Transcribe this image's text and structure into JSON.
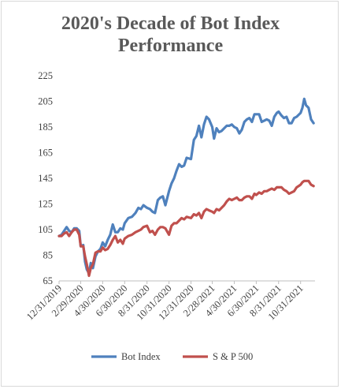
{
  "chart_data": {
    "type": "line",
    "title_lines": [
      "2020's Decade of Bot Index",
      "Performance"
    ],
    "xlabel": "",
    "ylabel": "",
    "ylim": [
      65,
      225
    ],
    "yticks": [
      65,
      85,
      105,
      125,
      145,
      165,
      185,
      205,
      225
    ],
    "xlim": [
      "2019-12-31",
      "2021-12-10"
    ],
    "xticks": [
      "12/31/2019",
      "2/29/2020",
      "4/30/2020",
      "6/30/2020",
      "8/31/2020",
      "10/31/2020",
      "12/31/2020",
      "2/28/2021",
      "4/30/2021",
      "6/30/2021",
      "8/31/2021",
      "10/31/2021"
    ],
    "grid": false,
    "legend": "bottom",
    "series": [
      {
        "name": "Bot Index",
        "color": "#4f81bd",
        "points": [
          [
            "2019-12-31",
            100
          ],
          [
            "2020-01-07",
            101
          ],
          [
            "2020-01-14",
            104
          ],
          [
            "2020-01-21",
            107
          ],
          [
            "2020-01-28",
            104
          ],
          [
            "2020-02-04",
            103
          ],
          [
            "2020-02-11",
            106
          ],
          [
            "2020-02-18",
            106
          ],
          [
            "2020-02-25",
            104
          ],
          [
            "2020-02-29",
            92
          ],
          [
            "2020-03-07",
            93
          ],
          [
            "2020-03-12",
            80
          ],
          [
            "2020-03-17",
            74
          ],
          [
            "2020-03-23",
            71
          ],
          [
            "2020-03-28",
            79
          ],
          [
            "2020-04-03",
            75
          ],
          [
            "2020-04-10",
            84
          ],
          [
            "2020-04-17",
            88
          ],
          [
            "2020-04-24",
            90
          ],
          [
            "2020-04-30",
            95
          ],
          [
            "2020-05-07",
            92
          ],
          [
            "2020-05-14",
            97
          ],
          [
            "2020-05-21",
            101
          ],
          [
            "2020-05-28",
            109
          ],
          [
            "2020-06-04",
            103
          ],
          [
            "2020-06-11",
            103
          ],
          [
            "2020-06-18",
            106
          ],
          [
            "2020-06-25",
            105
          ],
          [
            "2020-06-30",
            110
          ],
          [
            "2020-07-10",
            114
          ],
          [
            "2020-07-20",
            115
          ],
          [
            "2020-07-30",
            118
          ],
          [
            "2020-08-07",
            122
          ],
          [
            "2020-08-14",
            121
          ],
          [
            "2020-08-21",
            124
          ],
          [
            "2020-08-31",
            122
          ],
          [
            "2020-09-08",
            121
          ],
          [
            "2020-09-15",
            119
          ],
          [
            "2020-09-22",
            118
          ],
          [
            "2020-09-30",
            128
          ],
          [
            "2020-10-07",
            130
          ],
          [
            "2020-10-14",
            131
          ],
          [
            "2020-10-21",
            124
          ],
          [
            "2020-10-31",
            135
          ],
          [
            "2020-11-07",
            141
          ],
          [
            "2020-11-14",
            145
          ],
          [
            "2020-11-21",
            151
          ],
          [
            "2020-11-28",
            156
          ],
          [
            "2020-12-05",
            154
          ],
          [
            "2020-12-12",
            155
          ],
          [
            "2020-12-19",
            161
          ],
          [
            "2020-12-31",
            160
          ],
          [
            "2021-01-08",
            175
          ],
          [
            "2021-01-15",
            178
          ],
          [
            "2021-01-22",
            186
          ],
          [
            "2021-01-29",
            177
          ],
          [
            "2021-02-05",
            187
          ],
          [
            "2021-02-12",
            193
          ],
          [
            "2021-02-19",
            191
          ],
          [
            "2021-02-28",
            185
          ],
          [
            "2021-03-05",
            176
          ],
          [
            "2021-03-12",
            184
          ],
          [
            "2021-03-19",
            181
          ],
          [
            "2021-03-26",
            182
          ],
          [
            "2021-04-02",
            184
          ],
          [
            "2021-04-09",
            186
          ],
          [
            "2021-04-16",
            186
          ],
          [
            "2021-04-23",
            187
          ],
          [
            "2021-04-30",
            185
          ],
          [
            "2021-05-07",
            184
          ],
          [
            "2021-05-14",
            180
          ],
          [
            "2021-05-21",
            183
          ],
          [
            "2021-05-28",
            189
          ],
          [
            "2021-06-04",
            191
          ],
          [
            "2021-06-11",
            192
          ],
          [
            "2021-06-18",
            189
          ],
          [
            "2021-06-25",
            195
          ],
          [
            "2021-06-30",
            195
          ],
          [
            "2021-07-08",
            195
          ],
          [
            "2021-07-15",
            189
          ],
          [
            "2021-07-22",
            190
          ],
          [
            "2021-07-29",
            191
          ],
          [
            "2021-08-05",
            190
          ],
          [
            "2021-08-12",
            186
          ],
          [
            "2021-08-19",
            193
          ],
          [
            "2021-08-26",
            196
          ],
          [
            "2021-08-31",
            197
          ],
          [
            "2021-09-08",
            194
          ],
          [
            "2021-09-15",
            192
          ],
          [
            "2021-09-22",
            193
          ],
          [
            "2021-09-29",
            188
          ],
          [
            "2021-10-06",
            188
          ],
          [
            "2021-10-13",
            192
          ],
          [
            "2021-10-20",
            193
          ],
          [
            "2021-10-31",
            196
          ],
          [
            "2021-11-05",
            200
          ],
          [
            "2021-11-10",
            207
          ],
          [
            "2021-11-15",
            202
          ],
          [
            "2021-11-22",
            200
          ],
          [
            "2021-11-29",
            191
          ],
          [
            "2021-12-06",
            188
          ]
        ]
      },
      {
        "name": "S & P 500",
        "color": "#c0504d",
        "points": [
          [
            "2019-12-31",
            100
          ],
          [
            "2020-01-07",
            100
          ],
          [
            "2020-01-14",
            102
          ],
          [
            "2020-01-21",
            103
          ],
          [
            "2020-01-28",
            100
          ],
          [
            "2020-02-04",
            103
          ],
          [
            "2020-02-11",
            105
          ],
          [
            "2020-02-18",
            105
          ],
          [
            "2020-02-25",
            101
          ],
          [
            "2020-02-29",
            92
          ],
          [
            "2020-03-07",
            92
          ],
          [
            "2020-03-12",
            84
          ],
          [
            "2020-03-17",
            78
          ],
          [
            "2020-03-23",
            69
          ],
          [
            "2020-03-28",
            75
          ],
          [
            "2020-04-03",
            78
          ],
          [
            "2020-04-10",
            87
          ],
          [
            "2020-04-17",
            88
          ],
          [
            "2020-04-24",
            88
          ],
          [
            "2020-04-30",
            91
          ],
          [
            "2020-05-07",
            89
          ],
          [
            "2020-05-14",
            90
          ],
          [
            "2020-05-21",
            93
          ],
          [
            "2020-05-28",
            97
          ],
          [
            "2020-06-04",
            100
          ],
          [
            "2020-06-11",
            95
          ],
          [
            "2020-06-18",
            97
          ],
          [
            "2020-06-25",
            94
          ],
          [
            "2020-06-30",
            98
          ],
          [
            "2020-07-10",
            100
          ],
          [
            "2020-07-20",
            101
          ],
          [
            "2020-07-30",
            103
          ],
          [
            "2020-08-07",
            104
          ],
          [
            "2020-08-14",
            105
          ],
          [
            "2020-08-21",
            107
          ],
          [
            "2020-08-31",
            108
          ],
          [
            "2020-09-08",
            103
          ],
          [
            "2020-09-15",
            104
          ],
          [
            "2020-09-22",
            101
          ],
          [
            "2020-09-30",
            105
          ],
          [
            "2020-10-07",
            107
          ],
          [
            "2020-10-14",
            107
          ],
          [
            "2020-10-21",
            106
          ],
          [
            "2020-10-31",
            101
          ],
          [
            "2020-11-07",
            108
          ],
          [
            "2020-11-14",
            110
          ],
          [
            "2020-11-21",
            110
          ],
          [
            "2020-11-28",
            112
          ],
          [
            "2020-12-05",
            114
          ],
          [
            "2020-12-12",
            113
          ],
          [
            "2020-12-19",
            115
          ],
          [
            "2020-12-31",
            114
          ],
          [
            "2021-01-08",
            117
          ],
          [
            "2021-01-15",
            116
          ],
          [
            "2021-01-22",
            118
          ],
          [
            "2021-01-29",
            114
          ],
          [
            "2021-02-05",
            119
          ],
          [
            "2021-02-12",
            121
          ],
          [
            "2021-02-19",
            120
          ],
          [
            "2021-02-28",
            119
          ],
          [
            "2021-03-05",
            118
          ],
          [
            "2021-03-12",
            121
          ],
          [
            "2021-03-19",
            120
          ],
          [
            "2021-03-26",
            122
          ],
          [
            "2021-04-02",
            124
          ],
          [
            "2021-04-09",
            127
          ],
          [
            "2021-04-16",
            129
          ],
          [
            "2021-04-23",
            128
          ],
          [
            "2021-04-30",
            129
          ],
          [
            "2021-05-07",
            130
          ],
          [
            "2021-05-14",
            128
          ],
          [
            "2021-05-21",
            128
          ],
          [
            "2021-05-28",
            130
          ],
          [
            "2021-06-04",
            131
          ],
          [
            "2021-06-11",
            131
          ],
          [
            "2021-06-18",
            129
          ],
          [
            "2021-06-25",
            133
          ],
          [
            "2021-06-30",
            132
          ],
          [
            "2021-07-08",
            134
          ],
          [
            "2021-07-15",
            133
          ],
          [
            "2021-07-22",
            135
          ],
          [
            "2021-07-29",
            135
          ],
          [
            "2021-08-05",
            136
          ],
          [
            "2021-08-12",
            137
          ],
          [
            "2021-08-19",
            136
          ],
          [
            "2021-08-26",
            138
          ],
          [
            "2021-08-31",
            138
          ],
          [
            "2021-09-08",
            138
          ],
          [
            "2021-09-15",
            136
          ],
          [
            "2021-09-22",
            135
          ],
          [
            "2021-09-29",
            133
          ],
          [
            "2021-10-06",
            134
          ],
          [
            "2021-10-13",
            135
          ],
          [
            "2021-10-20",
            138
          ],
          [
            "2021-10-31",
            140
          ],
          [
            "2021-11-05",
            142
          ],
          [
            "2021-11-10",
            143
          ],
          [
            "2021-11-15",
            143
          ],
          [
            "2021-11-22",
            143
          ],
          [
            "2021-11-29",
            140
          ],
          [
            "2021-12-06",
            139
          ]
        ]
      }
    ]
  }
}
